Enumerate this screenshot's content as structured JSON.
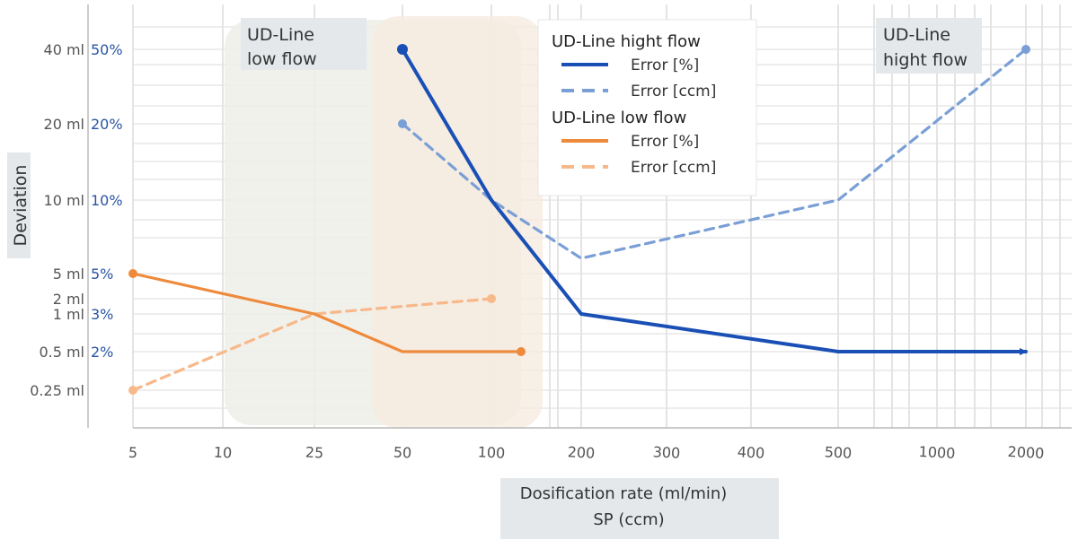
{
  "chart_data": {
    "type": "line",
    "ylabel": "Deviation",
    "xlabel_line1": "Dosification rate (ml/min)",
    "xlabel_line2": "SP (ccm)",
    "x_categories": [
      "5",
      "10",
      "25",
      "50",
      "100",
      "200",
      "300",
      "400",
      "500",
      "1000",
      "2000"
    ],
    "y_ticks_ml": [
      "40 ml",
      "20 ml",
      "10 ml",
      "5 ml",
      "2 ml",
      "1 ml",
      "0.5 ml",
      "0.25 ml"
    ],
    "y_ticks_pct": [
      "50%",
      "20%",
      "10%",
      "5%",
      "3%",
      "2%"
    ],
    "regions": [
      {
        "label_line1": "UD-Line",
        "label_line2": "low flow",
        "x_range": [
          "10",
          "100"
        ]
      },
      {
        "label_line1": "UD-Line",
        "label_line2": "hight flow",
        "x_range": [
          "50",
          "100"
        ]
      }
    ],
    "region_label_right": {
      "line1": "UD-Line",
      "line2": "hight flow"
    },
    "legend": {
      "groups": [
        {
          "title": "UD-Line hight flow",
          "entries": [
            {
              "label": "Error [%]",
              "color": "#1a4fb5",
              "dash": false
            },
            {
              "label": "Error [ccm]",
              "color": "#7a9fd6",
              "dash": true
            }
          ]
        },
        {
          "title": "UD-Line low flow",
          "entries": [
            {
              "label": "Error [%]",
              "color": "#ee8a3c",
              "dash": false
            },
            {
              "label": "Error [ccm]",
              "color": "#f7b88a",
              "dash": true
            }
          ]
        }
      ]
    },
    "series": [
      {
        "name": "UD-Line hight flow Error [%]",
        "color": "#1a4fb5",
        "dash": false,
        "points": [
          {
            "x": "50",
            "y": "50%"
          },
          {
            "x": "100",
            "y": "10%"
          },
          {
            "x": "200",
            "y": "3%"
          },
          {
            "x": "500",
            "y": "2%"
          },
          {
            "x": "2000",
            "y": "2%"
          }
        ],
        "end": "arrow"
      },
      {
        "name": "UD-Line hight flow Error [ccm]",
        "color": "#7a9fd6",
        "dash": true,
        "points": [
          {
            "x": "50",
            "y": "20 ml"
          },
          {
            "x": "100",
            "y": "10 ml"
          },
          {
            "x": "200",
            "y": 6
          },
          {
            "x": "500",
            "y": "10 ml"
          },
          {
            "x": "2000",
            "y": "40 ml"
          }
        ],
        "end": "dot"
      },
      {
        "name": "UD-Line low flow Error [%]",
        "color": "#ee8a3c",
        "dash": false,
        "points": [
          {
            "x": "5",
            "y": "5%"
          },
          {
            "x": "25",
            "y": "3%"
          },
          {
            "x": "50",
            "y": "2%"
          },
          {
            "x": "130",
            "y": "2%"
          }
        ],
        "end": "dot"
      },
      {
        "name": "UD-Line low flow Error [ccm]",
        "color": "#f7b88a",
        "dash": true,
        "points": [
          {
            "x": "5",
            "y": "0.25 ml"
          },
          {
            "x": "25",
            "y": "1 ml"
          },
          {
            "x": "100",
            "y": "2 ml"
          }
        ],
        "end": "dot"
      }
    ],
    "grid": true
  }
}
